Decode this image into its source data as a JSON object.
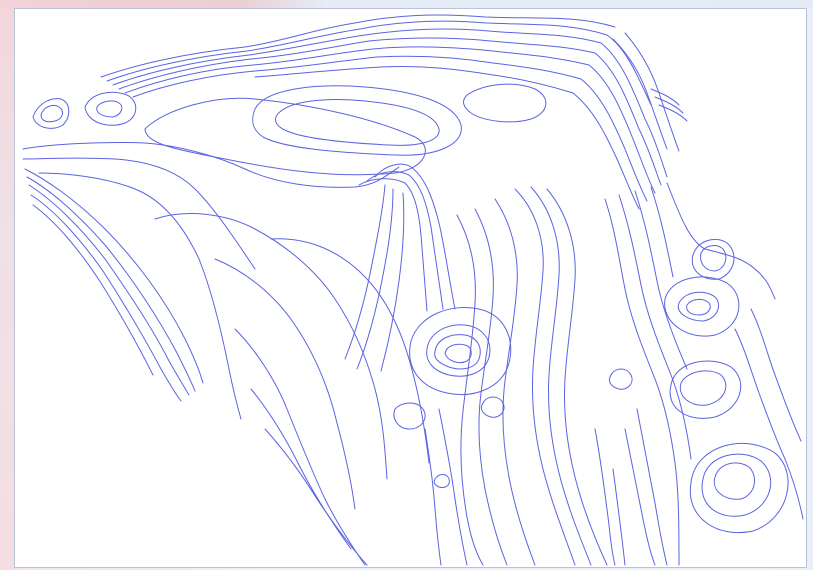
{
  "map": {
    "type": "contour-map",
    "contour_color": "#5a64e0",
    "background_color": "#ffffff",
    "frame_color": "#eef0f7",
    "labels": []
  }
}
